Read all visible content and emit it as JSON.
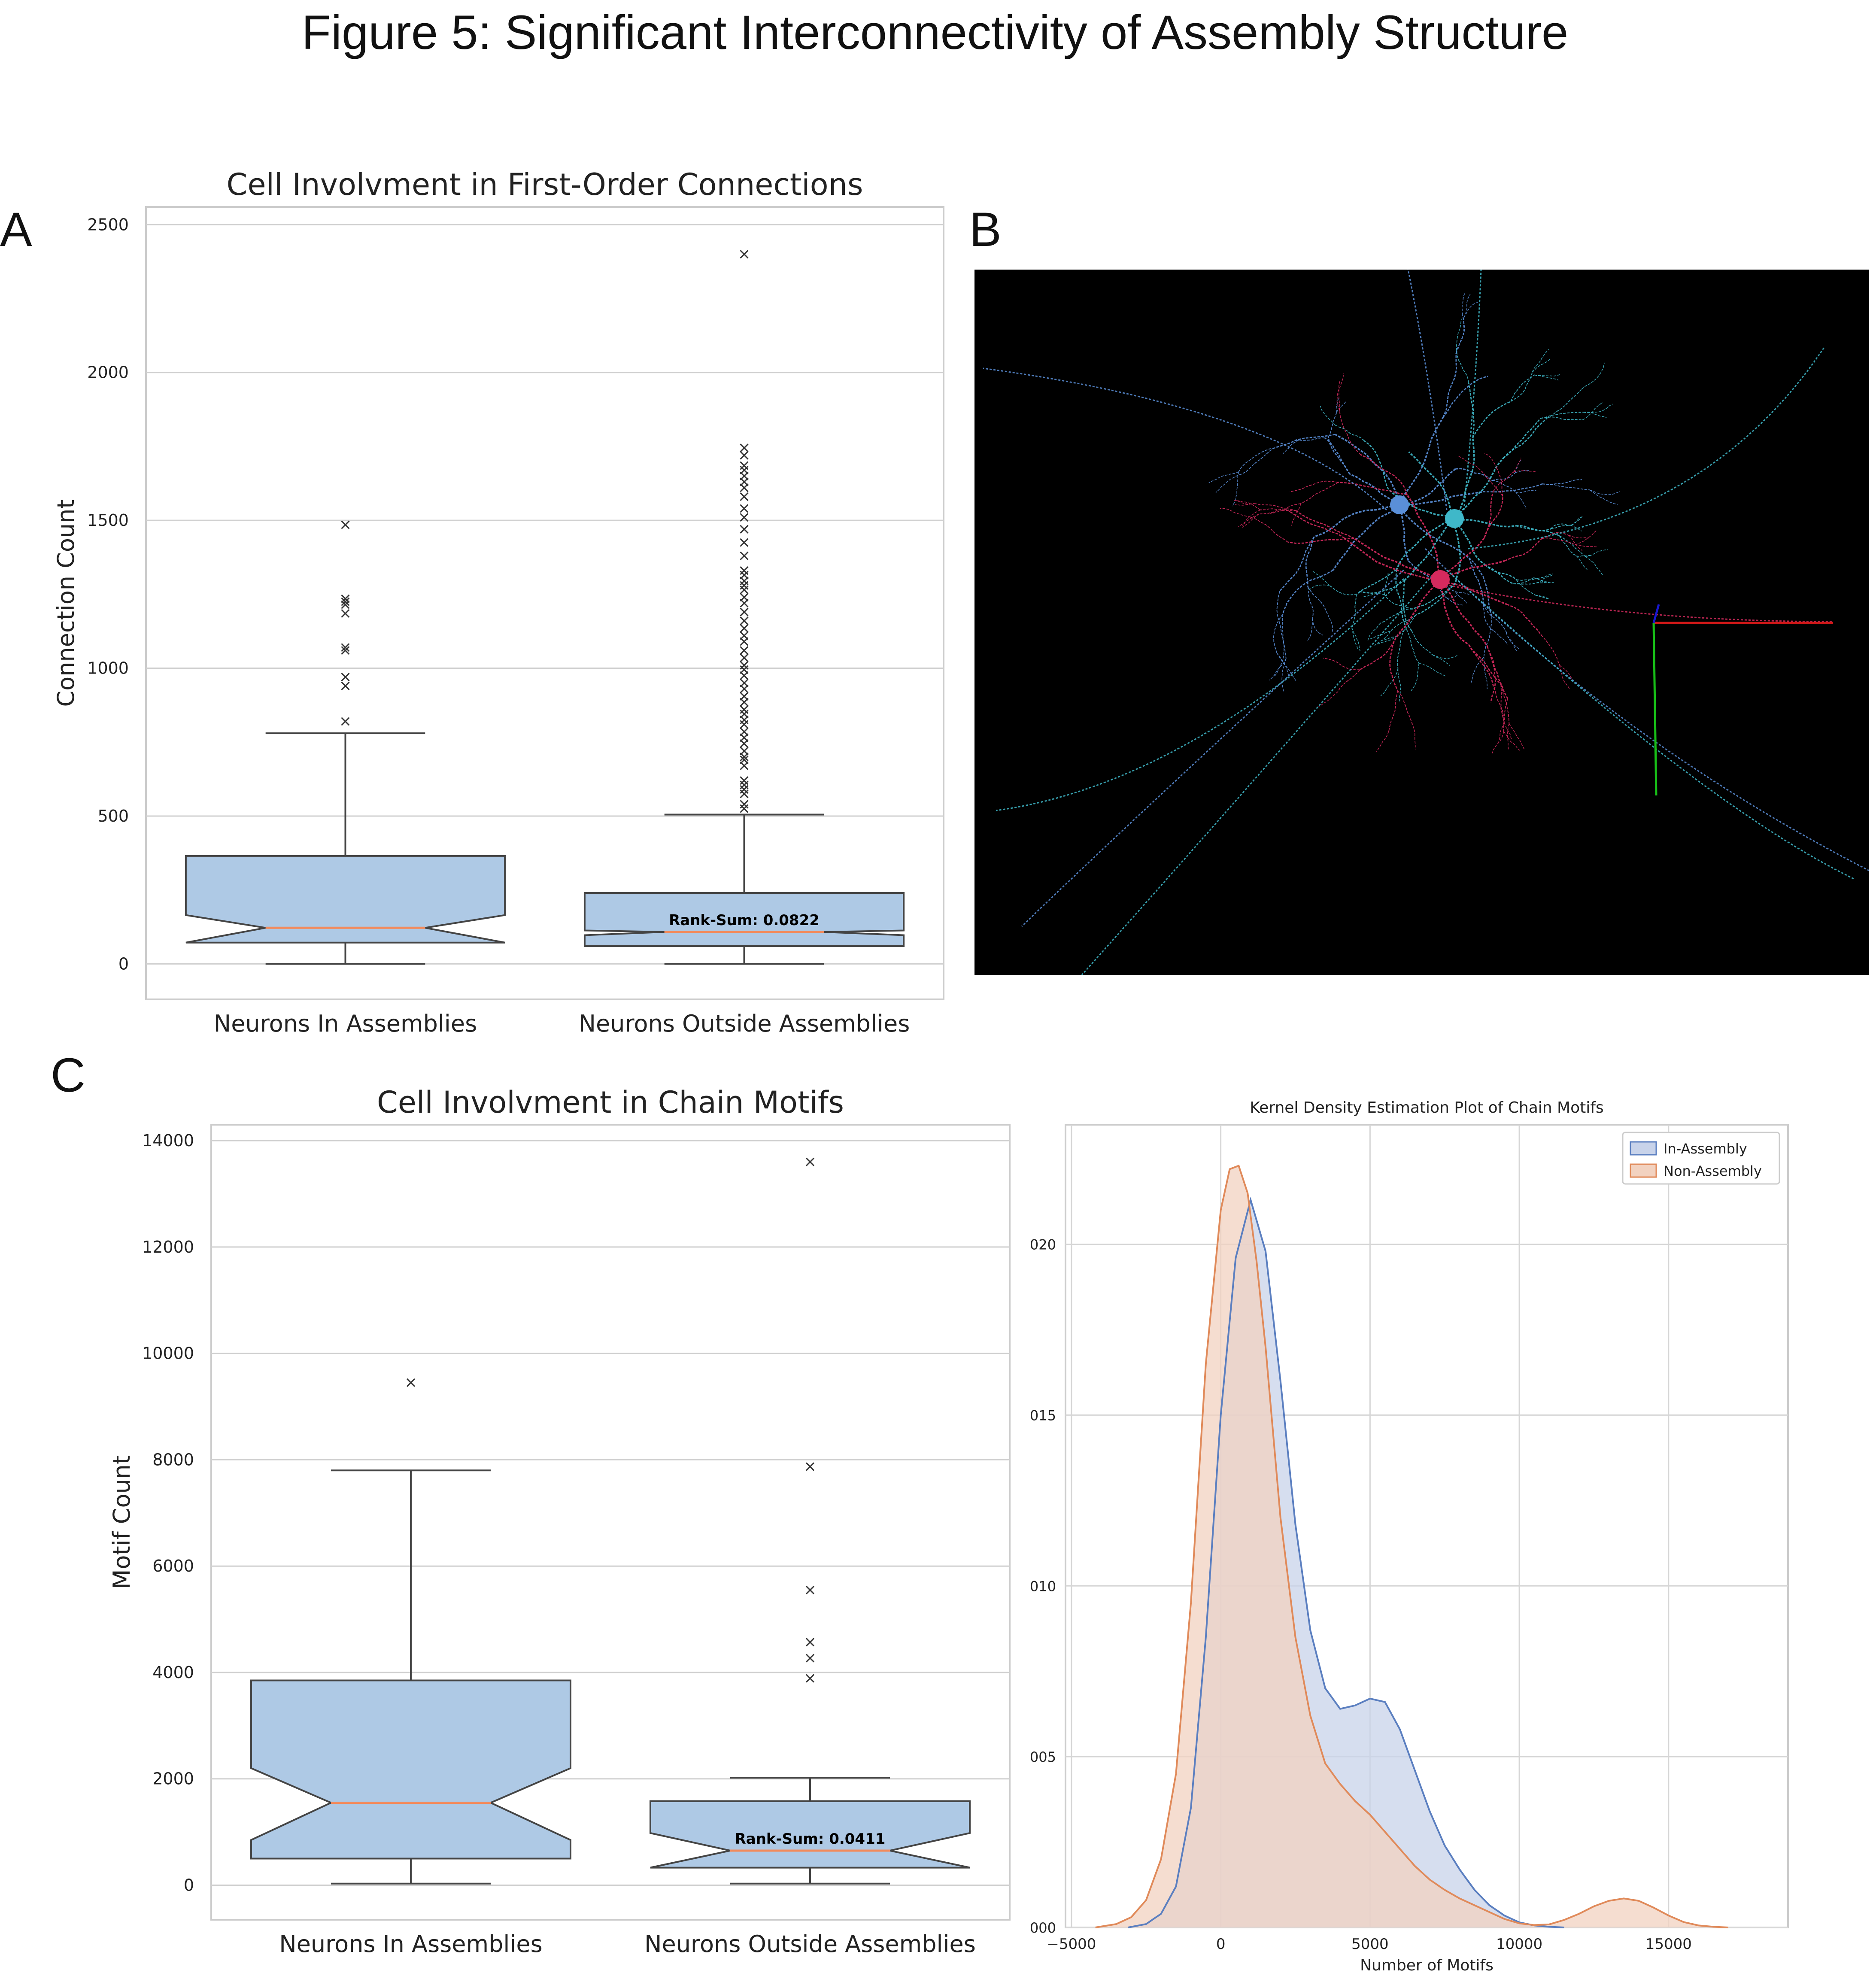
{
  "figure": {
    "title": "Figure 5: Significant Interconnectivity of Assembly Structure",
    "panel_labels": {
      "a": "A",
      "b": "B",
      "c": "C"
    }
  },
  "panel_b": {
    "type": "image",
    "background": "#000000",
    "neuron_colors": [
      "#5a8fd8",
      "#3fb8c9",
      "#d62a5e"
    ],
    "axis_colors": [
      "#d11818",
      "#18c018",
      "#1818d0"
    ]
  },
  "chart_data": [
    {
      "id": "A",
      "type": "box",
      "notched": true,
      "title": "Cell Involvment in First-Order Connections",
      "ylabel": "Connection Count",
      "ylim": [
        -120,
        2560
      ],
      "yticks": [
        0,
        500,
        1000,
        1500,
        2000,
        2500
      ],
      "grid": "y",
      "categories": [
        "Neurons In Assemblies",
        "Neurons Outside Assemblies"
      ],
      "boxes": [
        {
          "name": "Neurons In Assemblies",
          "whislo": 0,
          "q1": 72,
          "notch_lo": 72,
          "med": 122,
          "notch_hi": 165,
          "q3": 365,
          "whishi": 780,
          "fliers": [
            1485,
            1235,
            1225,
            1215,
            1185,
            1070,
            1060,
            970,
            940,
            820
          ]
        },
        {
          "name": "Neurons Outside Assemblies",
          "whislo": 0,
          "q1": 60,
          "notch_lo": 97,
          "med": 108,
          "notch_hi": 113,
          "q3": 240,
          "whishi": 505,
          "fliers": [
            2400,
            1745,
            1720,
            1685,
            1670,
            1650,
            1630,
            1610,
            1580,
            1540,
            1510,
            1470,
            1425,
            1380,
            1330,
            1315,
            1295,
            1280,
            1265,
            1240,
            1220,
            1190,
            1160,
            1135,
            1110,
            1090,
            1060,
            1035,
            1010,
            995,
            975,
            950,
            930,
            905,
            885,
            860,
            845,
            825,
            810,
            785,
            765,
            745,
            720,
            700,
            690,
            670,
            620,
            605,
            590,
            575,
            540,
            525
          ]
        }
      ],
      "annotation": "Rank-Sum: 0.0822",
      "box_color": "#aec9e5",
      "median_color": "#f28a5c"
    },
    {
      "id": "C-left",
      "type": "box",
      "notched": true,
      "title": "Cell Involvment in Chain Motifs",
      "ylabel": "Motif Count",
      "ylim": [
        -650,
        14300
      ],
      "yticks": [
        0,
        2000,
        4000,
        6000,
        8000,
        10000,
        12000,
        14000
      ],
      "grid": "y",
      "categories": [
        "Neurons In Assemblies",
        "Neurons Outside Assemblies"
      ],
      "boxes": [
        {
          "name": "Neurons In Assemblies",
          "whislo": 30,
          "q1": 500,
          "notch_lo": 850,
          "med": 1550,
          "notch_hi": 2200,
          "q3": 3850,
          "whishi": 7800,
          "fliers": [
            9450
          ]
        },
        {
          "name": "Neurons Outside Assemblies",
          "whislo": 30,
          "q1": 330,
          "notch_lo": 330,
          "med": 650,
          "notch_hi": 980,
          "q3": 1580,
          "whishi": 2020,
          "fliers": [
            13600,
            7870,
            5550,
            4570,
            4270,
            3890
          ]
        }
      ],
      "annotation": "Rank-Sum: 0.0411",
      "box_color": "#aec9e5",
      "median_color": "#f28a5c"
    },
    {
      "id": "C-right",
      "type": "area",
      "title": "Kernel Density Estimation Plot of Chain Motifs",
      "xlabel": "Number of Motifs",
      "xlim": [
        -5200,
        19000
      ],
      "xticks": [
        -5000,
        0,
        5000,
        10000,
        15000
      ],
      "xtick_labels": [
        "−5000",
        "0",
        "5000",
        "10000",
        "15000"
      ],
      "ylim": [
        0,
        0.000235
      ],
      "yticks": [
        0,
        5e-05,
        0.0001,
        0.00015,
        0.0002
      ],
      "ytick_labels": [
        "000",
        "005",
        "010",
        "015",
        "020"
      ],
      "grid": true,
      "legend_position": "top-right",
      "series": [
        {
          "name": "In-Assembly",
          "color": "#5b7fc0",
          "fill": "#c8d3ea",
          "x": [
            -3100,
            -2500,
            -2000,
            -1500,
            -1000,
            -500,
            0,
            500,
            1000,
            1500,
            2000,
            2500,
            3000,
            3500,
            4000,
            4500,
            5000,
            5500,
            6000,
            6500,
            7000,
            7500,
            8000,
            8500,
            9000,
            9500,
            10000,
            10500,
            11000,
            11500
          ],
          "y": [
            0,
            1e-06,
            4e-06,
            1.2e-05,
            3.5e-05,
            8.5e-05,
            0.00015,
            0.000196,
            0.000213,
            0.000198,
            0.00016,
            0.000118,
            8.7e-05,
            7e-05,
            6.4e-05,
            6.5e-05,
            6.7e-05,
            6.6e-05,
            5.8e-05,
            4.6e-05,
            3.4e-05,
            2.4e-05,
            1.7e-05,
            1.1e-05,
            6.5e-06,
            3.5e-06,
            1.5e-06,
            6e-07,
            2e-07,
            0
          ]
        },
        {
          "name": "Non-Assembly",
          "color": "#e08a5a",
          "fill": "#f2d2c0",
          "x": [
            -4200,
            -3500,
            -3000,
            -2500,
            -2000,
            -1500,
            -1000,
            -500,
            0,
            300,
            600,
            900,
            1200,
            1500,
            2000,
            2500,
            3000,
            3500,
            4000,
            4500,
            5000,
            5500,
            6000,
            6500,
            7000,
            7500,
            8000,
            8500,
            9000,
            9500,
            10000,
            10500,
            11000,
            11500,
            12000,
            12500,
            13000,
            13500,
            14000,
            14500,
            15000,
            15500,
            16000,
            16500,
            17000
          ],
          "y": [
            0,
            1e-06,
            3e-06,
            8e-06,
            2e-05,
            4.5e-05,
            9.5e-05,
            0.000165,
            0.00021,
            0.000222,
            0.000223,
            0.000215,
            0.000195,
            0.00017,
            0.00012,
            8.5e-05,
            6.2e-05,
            4.8e-05,
            4.2e-05,
            3.7e-05,
            3.3e-05,
            2.8e-05,
            2.3e-05,
            1.8e-05,
            1.4e-05,
            1.1e-05,
            8.5e-06,
            6.5e-06,
            4.5e-06,
            2.5e-06,
            1.2e-06,
            7e-07,
            9e-07,
            2.2e-06,
            4e-06,
            6.2e-06,
            7.8e-06,
            8.5e-06,
            7.8e-06,
            5.8e-06,
            3.5e-06,
            1.6e-06,
            6e-07,
            2e-07,
            0
          ]
        }
      ]
    }
  ]
}
